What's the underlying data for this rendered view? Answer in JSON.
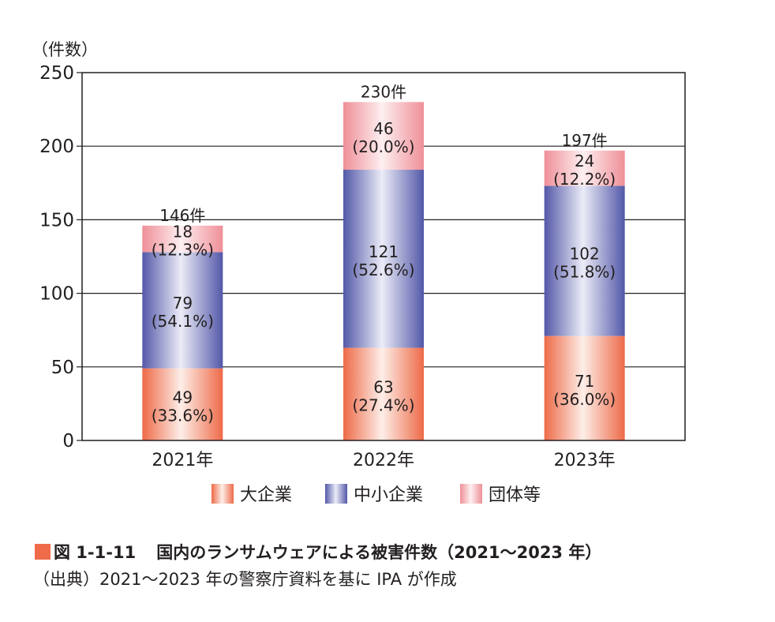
{
  "chart_data": {
    "type": "bar",
    "stacked": true,
    "y_unit_label": "（件数）",
    "ylim": [
      0,
      250
    ],
    "yticks": [
      0,
      50,
      100,
      150,
      200,
      250
    ],
    "grid": true,
    "legend_position": "bottom",
    "categories": [
      "2021年",
      "2022年",
      "2023年"
    ],
    "totals": [
      146,
      230,
      197
    ],
    "total_labels": [
      "146件",
      "230件",
      "197件"
    ],
    "series": [
      {
        "name": "大企業",
        "values": [
          49,
          63,
          71
        ],
        "percent_labels": [
          "(33.6%)",
          "(27.4%)",
          "(36.0%)"
        ],
        "color_edge": "#ee6a48",
        "color_mid": "#fdeee8"
      },
      {
        "name": "中小企業",
        "values": [
          79,
          121,
          102
        ],
        "percent_labels": [
          "(54.1%)",
          "(52.6%)",
          "(51.8%)"
        ],
        "color_edge": "#5358a8",
        "color_mid": "#ebecf7"
      },
      {
        "name": "団体等",
        "values": [
          18,
          46,
          24
        ],
        "percent_labels": [
          "(12.3%)",
          "(20.0%)",
          "(12.2%)"
        ],
        "color_edge": "#ef8f98",
        "color_mid": "#fdeff0"
      }
    ]
  },
  "caption": {
    "square_color": "#ef6b4a",
    "number": "図 1-1-11",
    "title": "国内のランサムウェアによる被害件数（2021～2023 年）"
  },
  "source": "（出典）2021～2023 年の警察庁資料を基に IPA が作成"
}
